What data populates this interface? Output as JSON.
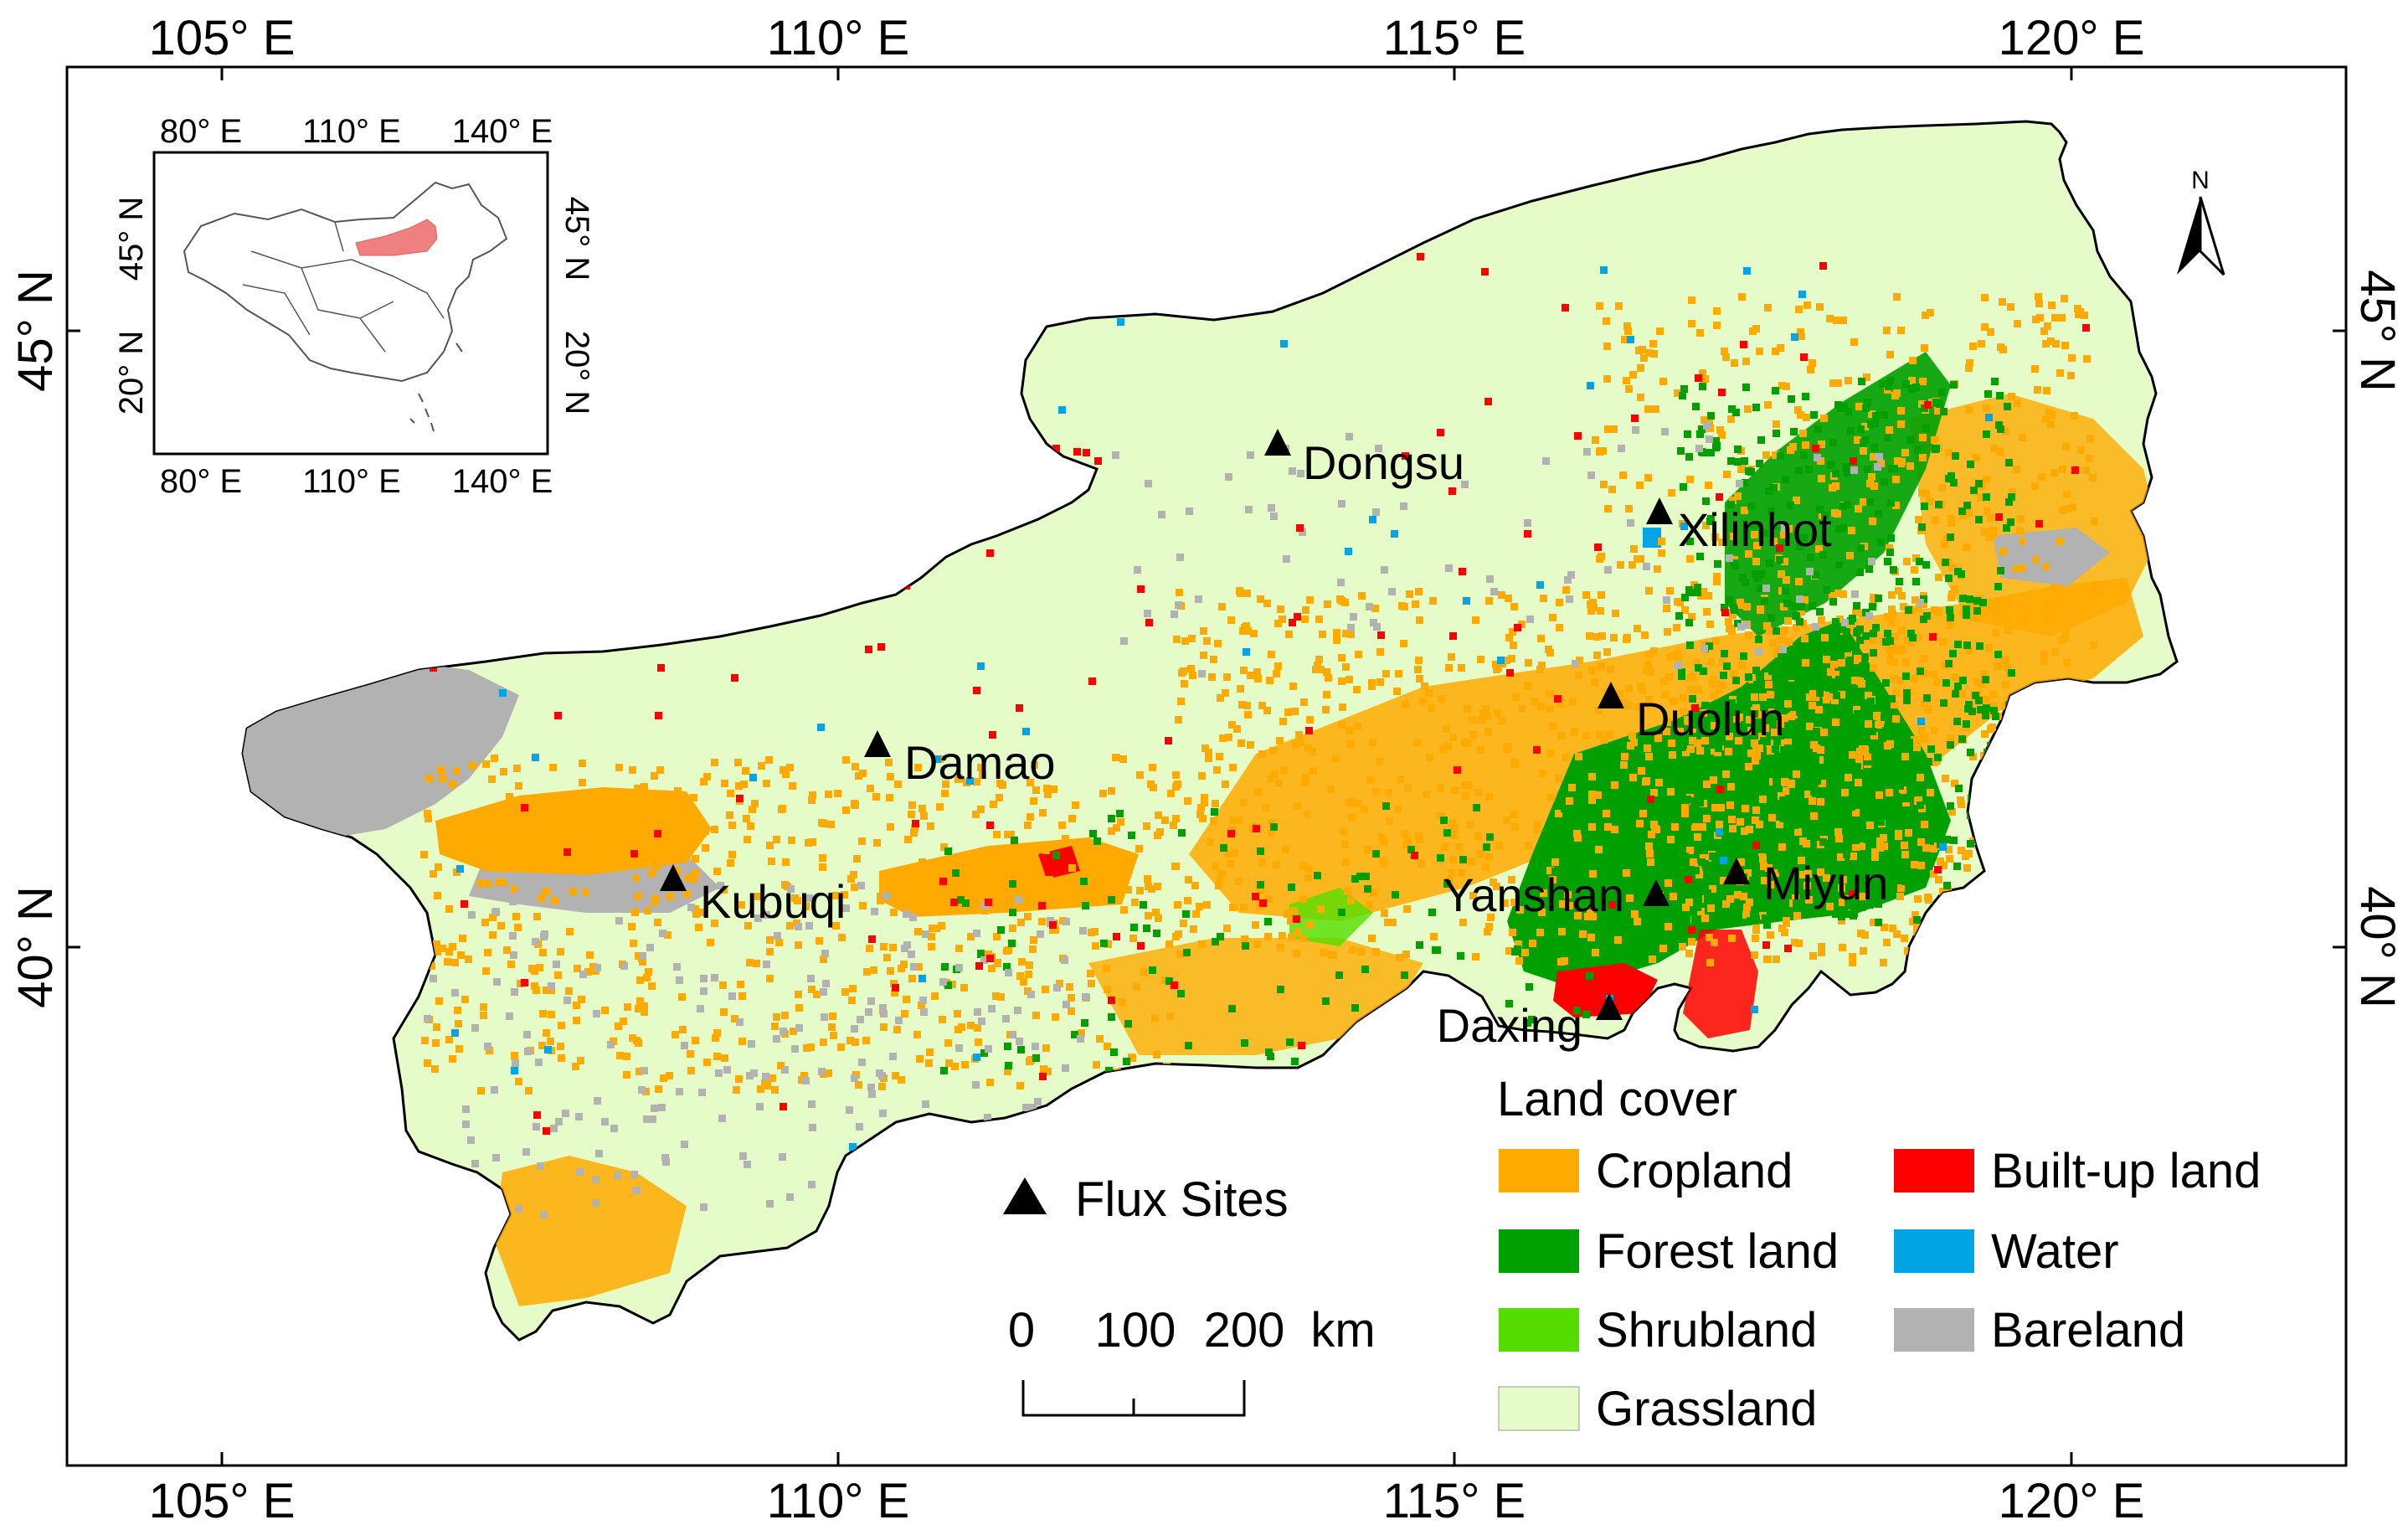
{
  "colors": {
    "cropland": "#ffaa00",
    "forest_land": "#00a000",
    "shrubland": "#55dd00",
    "grassland": "#e6fcc8",
    "built_up_land": "#ff0000",
    "water": "#00a5e6",
    "bareland": "#b2b2b2",
    "inset_highlight": "#f08080"
  },
  "map": {
    "top_longitude_labels": [
      "105° E",
      "110° E",
      "115° E",
      "120° E"
    ],
    "bottom_longitude_labels": [
      "105° E",
      "110° E",
      "115° E",
      "120° E"
    ],
    "left_latitude_labels": [
      "45° N",
      "40° N"
    ],
    "right_latitude_labels": [
      "45° N",
      "40° N"
    ],
    "north_arrow_label": "N"
  },
  "inset": {
    "top_labels": [
      "80° E",
      "110° E",
      "140° E"
    ],
    "bottom_labels": [
      "80° E",
      "110° E",
      "140° E"
    ],
    "left_labels": [
      "45° N",
      "20° N"
    ],
    "right_labels": [
      "45° N",
      "20° N"
    ]
  },
  "sites": [
    {
      "name": "Dongsu"
    },
    {
      "name": "Xilinhot"
    },
    {
      "name": "Duolun"
    },
    {
      "name": "Damao"
    },
    {
      "name": "Kubuqi"
    },
    {
      "name": "Yanshan"
    },
    {
      "name": "Miyun"
    },
    {
      "name": "Daxing"
    }
  ],
  "legend": {
    "title": "Land cover",
    "flux_sites_label": "Flux Sites",
    "items": [
      {
        "label": "Cropland",
        "color_key": "cropland"
      },
      {
        "label": "Forest land",
        "color_key": "forest_land"
      },
      {
        "label": "Shrubland",
        "color_key": "shrubland"
      },
      {
        "label": "Grassland",
        "color_key": "grassland"
      },
      {
        "label": "Built-up land",
        "color_key": "built_up_land"
      },
      {
        "label": "Water",
        "color_key": "water"
      },
      {
        "label": "Bareland",
        "color_key": "bareland"
      }
    ]
  },
  "scale_bar": {
    "labels": [
      "0",
      "100",
      "200",
      "km"
    ]
  }
}
